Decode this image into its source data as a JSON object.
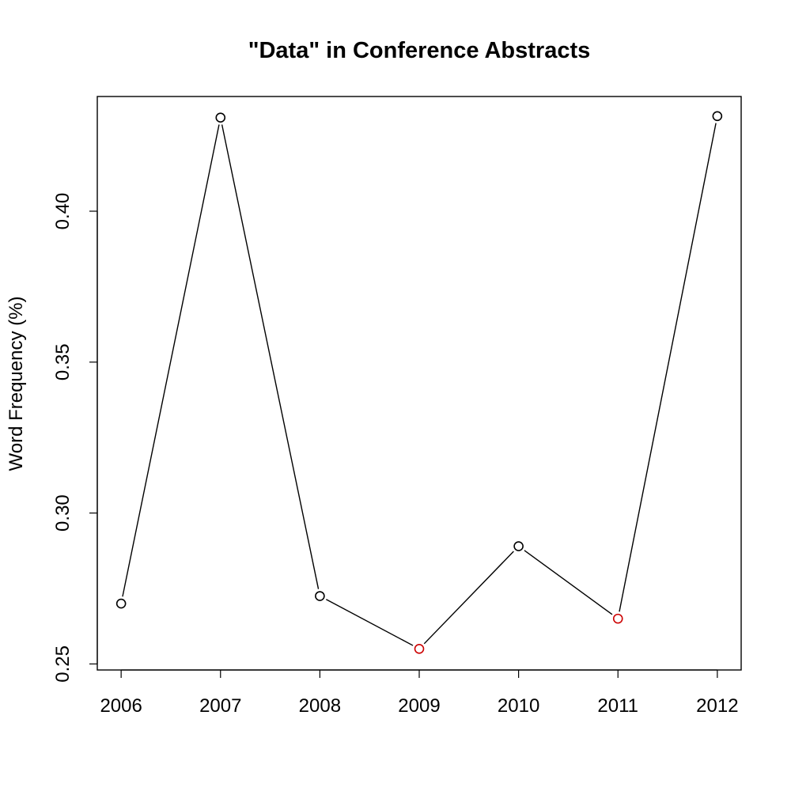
{
  "chart_data": {
    "type": "line",
    "title": "\"Data\" in Conference Abstracts",
    "xlabel": "",
    "ylabel": "Word Frequency (%)",
    "x": [
      2006,
      2007,
      2008,
      2009,
      2010,
      2011,
      2012
    ],
    "x_tick_labels": [
      "2006",
      "2007",
      "2008",
      "2009",
      "2010",
      "2011",
      "2012"
    ],
    "y_ticks": [
      0.25,
      0.3,
      0.35,
      0.4
    ],
    "y_tick_labels": [
      "0.25",
      "0.30",
      "0.35",
      "0.40"
    ],
    "ylim": [
      0.248,
      0.438
    ],
    "xlim": [
      2005.76,
      2012.24
    ],
    "series": [
      {
        "values": [
          0.27,
          0.431,
          0.2725,
          0.255,
          0.289,
          0.265,
          0.4315
        ],
        "point_colors": [
          "#000000",
          "#000000",
          "#000000",
          "#cc0000",
          "#000000",
          "#cc0000",
          "#000000"
        ]
      }
    ],
    "grid": false,
    "legend": "none"
  }
}
